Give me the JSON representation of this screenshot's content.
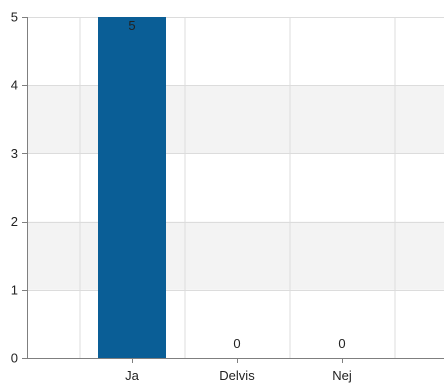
{
  "chart_data": {
    "type": "bar",
    "title": "",
    "xlabel": "",
    "ylabel": "",
    "categories": [
      "Ja",
      "Delvis",
      "Nej"
    ],
    "values": [
      5,
      0,
      0
    ],
    "data_labels": [
      "5",
      "0",
      "0"
    ],
    "ylim": [
      0,
      5
    ],
    "yticks": [
      0,
      1,
      2,
      3,
      4,
      5
    ],
    "grid": true,
    "alternating_bands": true,
    "colors": {
      "bar": "#0A5E96",
      "band": "#F3F3F3",
      "grid": "#DCDCDC",
      "axis": "#7F7F7F",
      "text": "#222222"
    }
  }
}
